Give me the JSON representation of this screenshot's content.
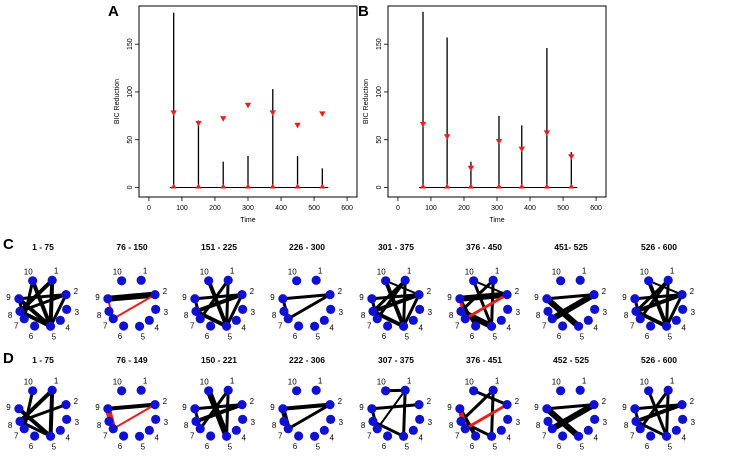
{
  "panel_letters": [
    "A",
    "B",
    "C",
    "D"
  ],
  "colors": {
    "edge": "#000000",
    "edge_highlight": "#e8201c",
    "node": "#1010d0",
    "marker": "#e8201c"
  },
  "chart_data": [
    {
      "type": "lollipop",
      "panel": "A",
      "title": "",
      "xlabel": "Time",
      "ylabel": "BIC Reduction",
      "xlim": [
        -30,
        630
      ],
      "ylim": [
        -10,
        190
      ],
      "xticks": [
        0,
        100,
        200,
        300,
        400,
        500,
        600
      ],
      "yticks": [
        0,
        50,
        100,
        150
      ],
      "baseline": 0,
      "series": [
        {
          "name": "BIC Reduction",
          "x": [
            75,
            150,
            225,
            300,
            375,
            450,
            525
          ],
          "values": [
            183,
            70,
            27,
            33,
            103,
            33,
            20
          ]
        },
        {
          "name": "Threshold",
          "x": [
            75,
            150,
            225,
            300,
            375,
            450,
            525
          ],
          "values": [
            78,
            67,
            72,
            86,
            78,
            65,
            77
          ]
        }
      ]
    },
    {
      "type": "lollipop",
      "panel": "B",
      "title": "",
      "xlabel": "Time",
      "ylabel": "BIC Reduction",
      "xlim": [
        -30,
        630
      ],
      "ylim": [
        -10,
        190
      ],
      "xticks": [
        0,
        100,
        200,
        300,
        400,
        500,
        600
      ],
      "yticks": [
        0,
        50,
        100,
        150
      ],
      "baseline": 0,
      "series": [
        {
          "name": "BIC Reduction",
          "x": [
            76,
            149,
            221,
            306,
            375,
            451,
            525
          ],
          "values": [
            184,
            157,
            27,
            75,
            65,
            146,
            37
          ]
        },
        {
          "name": "Threshold",
          "x": [
            76,
            149,
            221,
            306,
            375,
            451,
            525
          ],
          "values": [
            66,
            53,
            20,
            48,
            40,
            57,
            32
          ]
        }
      ]
    }
  ],
  "networks": {
    "node_labels": [
      "1",
      "2",
      "3",
      "4",
      "5",
      "6",
      "7",
      "8",
      "9",
      "10"
    ],
    "rows": [
      {
        "letter": "C",
        "panels": [
          {
            "title": "1 - 75",
            "edges": [
              [
                1,
                8,
                4
              ],
              [
                1,
                5,
                4
              ],
              [
                5,
                10,
                4
              ],
              [
                9,
                5,
                4
              ],
              [
                9,
                2,
                3
              ],
              [
                10,
                7,
                3
              ],
              [
                8,
                2,
                3
              ],
              [
                8,
                5,
                4
              ],
              [
                2,
                5,
                3
              ],
              [
                7,
                9,
                3
              ]
            ]
          },
          {
            "title": "76 - 150",
            "edges": [
              [
                9,
                2,
                6
              ],
              [
                2,
                7,
                2,
                "r"
              ],
              [
                7,
                9,
                2,
                "r"
              ]
            ]
          },
          {
            "title": "151 - 225",
            "edges": [
              [
                9,
                2,
                3
              ],
              [
                8,
                2,
                4
              ],
              [
                8,
                5,
                4
              ],
              [
                10,
                5,
                4
              ],
              [
                1,
                7,
                3
              ],
              [
                1,
                5,
                3
              ],
              [
                7,
                9,
                3
              ],
              [
                2,
                5,
                3
              ]
            ]
          },
          {
            "title": "226 - 300",
            "edges": [
              [
                9,
                2,
                3
              ],
              [
                2,
                7,
                3
              ],
              [
                7,
                9,
                3
              ]
            ]
          },
          {
            "title": "301 - 375",
            "edges": [
              [
                9,
                2,
                3
              ],
              [
                8,
                2,
                4
              ],
              [
                8,
                5,
                4
              ],
              [
                10,
                5,
                4
              ],
              [
                1,
                7,
                3
              ],
              [
                1,
                5,
                3
              ],
              [
                7,
                9,
                3
              ],
              [
                2,
                5,
                3
              ],
              [
                10,
                2,
                2
              ],
              [
                1,
                8,
                3
              ]
            ]
          },
          {
            "title": "376 - 450",
            "edges": [
              [
                9,
                2,
                6
              ],
              [
                8,
                5,
                6
              ],
              [
                10,
                5,
                3
              ],
              [
                1,
                8,
                3
              ],
              [
                1,
                5,
                3
              ],
              [
                9,
                6,
                3
              ],
              [
                2,
                7,
                3,
                "r"
              ],
              [
                7,
                9,
                3,
                "r"
              ],
              [
                10,
                2,
                2
              ]
            ]
          },
          {
            "title": "451- 525",
            "edges": [
              [
                9,
                2,
                3
              ],
              [
                9,
                5,
                6
              ],
              [
                2,
                7,
                6
              ]
            ]
          },
          {
            "title": "526 - 600",
            "edges": [
              [
                9,
                2,
                3
              ],
              [
                8,
                2,
                4
              ],
              [
                8,
                5,
                4
              ],
              [
                10,
                5,
                4
              ],
              [
                1,
                7,
                3
              ],
              [
                1,
                5,
                3
              ],
              [
                7,
                9,
                3
              ],
              [
                2,
                5,
                3
              ],
              [
                10,
                2,
                2
              ],
              [
                1,
                8,
                3
              ]
            ]
          }
        ]
      },
      {
        "letter": "D",
        "panels": [
          {
            "title": "1 - 75",
            "edges": [
              [
                1,
                8,
                4
              ],
              [
                1,
                5,
                4
              ],
              [
                9,
                5,
                4
              ],
              [
                8,
                2,
                3
              ],
              [
                10,
                7,
                3
              ],
              [
                8,
                5,
                3
              ]
            ]
          },
          {
            "title": "76 - 149",
            "edges": [
              [
                9,
                2,
                4
              ],
              [
                2,
                7,
                2,
                "r"
              ],
              [
                7,
                9,
                6,
                "r"
              ]
            ]
          },
          {
            "title": "150 - 221",
            "edges": [
              [
                9,
                2,
                3
              ],
              [
                8,
                2,
                4
              ],
              [
                10,
                5,
                6
              ],
              [
                1,
                7,
                3
              ],
              [
                1,
                5,
                3
              ],
              [
                7,
                9,
                3
              ]
            ]
          },
          {
            "title": "222 - 306",
            "edges": [
              [
                9,
                2,
                4
              ],
              [
                2,
                7,
                3
              ],
              [
                7,
                9,
                5
              ]
            ]
          },
          {
            "title": "307 - 375",
            "edges": [
              [
                10,
                1,
                3
              ],
              [
                1,
                7,
                2
              ],
              [
                1,
                5,
                3
              ],
              [
                9,
                2,
                3
              ],
              [
                7,
                9,
                3
              ],
              [
                8,
                5,
                3
              ]
            ]
          },
          {
            "title": "376 - 451",
            "edges": [
              [
                10,
                2,
                3
              ],
              [
                1,
                8,
                3
              ],
              [
                1,
                5,
                3
              ],
              [
                9,
                6,
                4
              ],
              [
                8,
                5,
                3
              ],
              [
                2,
                7,
                3,
                "r"
              ],
              [
                7,
                9,
                5,
                "r"
              ]
            ]
          },
          {
            "title": "452 - 525",
            "edges": [
              [
                9,
                2,
                3
              ],
              [
                9,
                5,
                6
              ],
              [
                2,
                7,
                6
              ]
            ]
          },
          {
            "title": "526 - 600",
            "edges": [
              [
                9,
                2,
                3
              ],
              [
                8,
                2,
                4
              ],
              [
                8,
                5,
                3
              ],
              [
                10,
                5,
                3
              ],
              [
                1,
                7,
                3
              ],
              [
                1,
                5,
                3
              ],
              [
                7,
                9,
                3
              ]
            ]
          }
        ]
      }
    ]
  }
}
